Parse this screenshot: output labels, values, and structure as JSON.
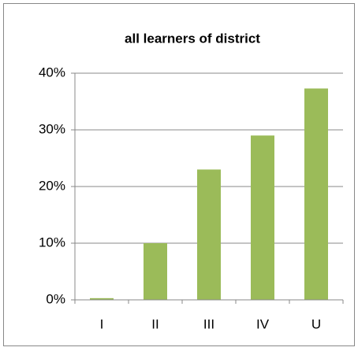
{
  "chart_data": {
    "type": "bar",
    "title": "all learners of district",
    "categories": [
      "I",
      "II",
      "III",
      "IV",
      "U"
    ],
    "values": [
      0.3,
      10,
      23,
      29,
      37.3
    ],
    "color": "#9bbb59",
    "ylim": [
      0,
      40
    ],
    "yticks": [
      {
        "value": 0,
        "label": "0%"
      },
      {
        "value": 10,
        "label": "10%"
      },
      {
        "value": 20,
        "label": "20%"
      },
      {
        "value": 30,
        "label": "30%"
      },
      {
        "value": 40,
        "label": "40%"
      }
    ],
    "grid": true
  }
}
